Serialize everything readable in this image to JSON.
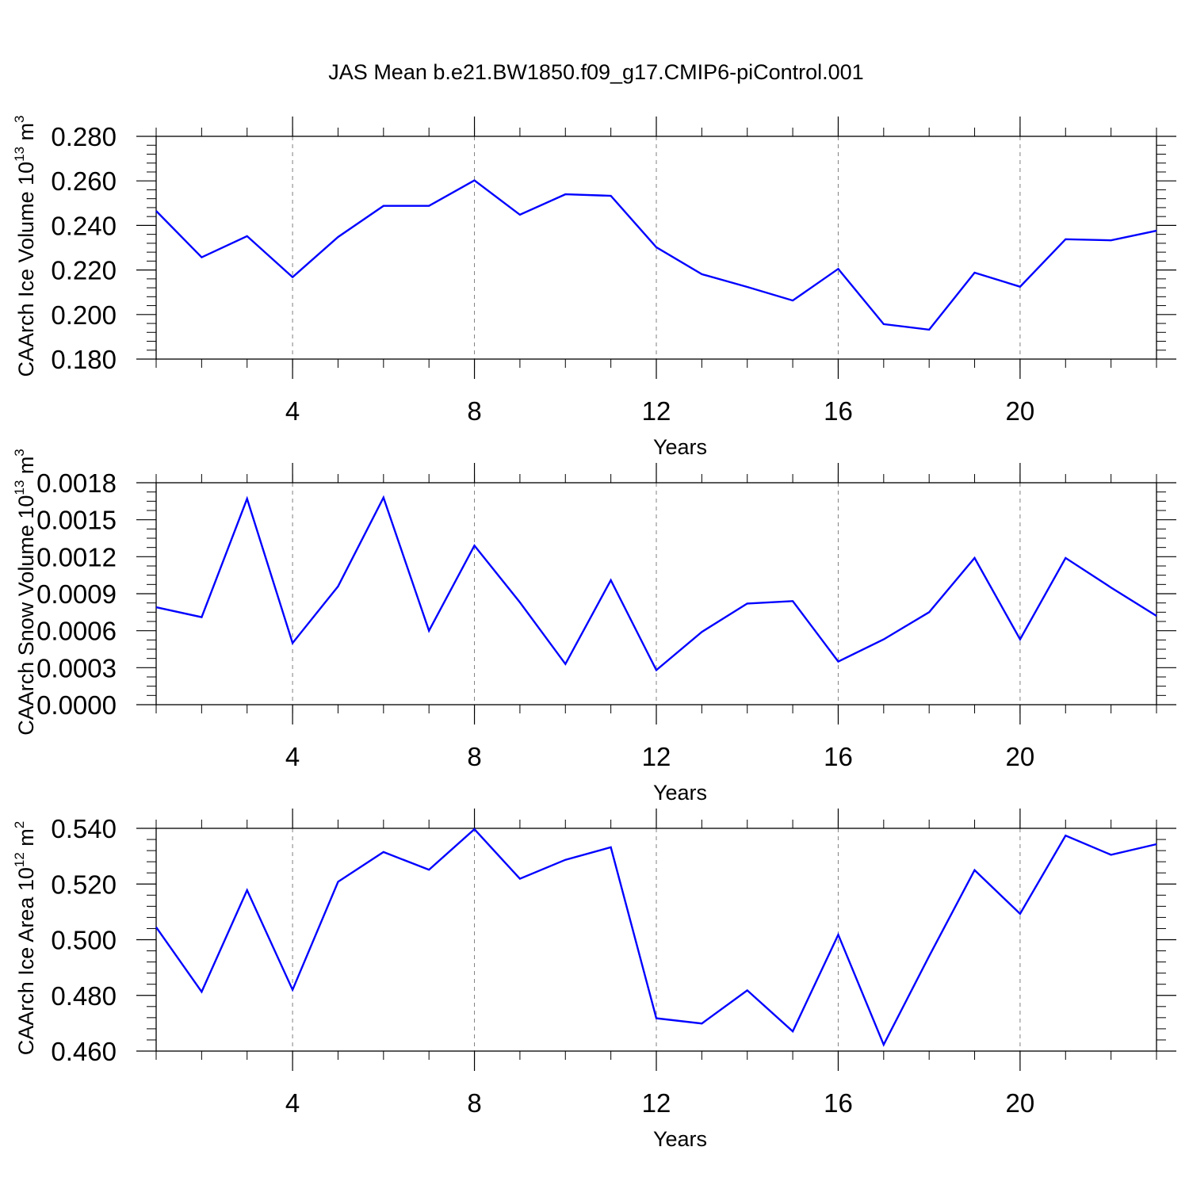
{
  "title": "JAS Mean b.e21.BW1850.f09_g17.CMIP6-piControl.001",
  "line_color": "#0000ff",
  "grid_color": "#808080",
  "chart_data": [
    {
      "type": "line",
      "title": "JAS Mean b.e21.BW1850.f09_g17.CMIP6-piControl.001",
      "xlabel": "Years",
      "ylabel": {
        "text": "CAArch Ice Volume 10",
        "exp": "13",
        "unit": "m",
        "unit_exp": "3"
      },
      "xlim": [
        1,
        23
      ],
      "ylim": [
        0.18,
        0.28
      ],
      "xticks": [
        4,
        8,
        12,
        16,
        20
      ],
      "xtick_labels": [
        "4",
        "8",
        "12",
        "16",
        "20"
      ],
      "yticks": [
        0.18,
        0.2,
        0.22,
        0.24,
        0.26,
        0.28
      ],
      "ytick_labels": [
        "0.180",
        "0.200",
        "0.220",
        "0.240",
        "0.260",
        "0.280"
      ],
      "grid": "vertical dashed at major x ticks",
      "x": [
        1,
        2,
        3,
        4,
        5,
        6,
        7,
        8,
        9,
        10,
        11,
        12,
        13,
        14,
        15,
        16,
        17,
        18,
        19,
        20,
        21,
        22,
        23
      ],
      "values": [
        0.2465,
        0.2257,
        0.2352,
        0.2168,
        0.2348,
        0.2488,
        0.2488,
        0.2602,
        0.2448,
        0.254,
        0.2533,
        0.2302,
        0.2181,
        0.2124,
        0.2063,
        0.2205,
        0.1957,
        0.1932,
        0.2188,
        0.2125,
        0.2338,
        0.2333,
        0.2376
      ]
    },
    {
      "type": "line",
      "xlabel": "Years",
      "ylabel": {
        "text": "CAArch Snow Volume 10",
        "exp": "13",
        "unit": "m",
        "unit_exp": "3"
      },
      "xlim": [
        1,
        23
      ],
      "ylim": [
        0,
        0.0018
      ],
      "xticks": [
        4,
        8,
        12,
        16,
        20
      ],
      "xtick_labels": [
        "4",
        "8",
        "12",
        "16",
        "20"
      ],
      "yticks": [
        0,
        0.0003,
        0.0006,
        0.0009,
        0.0012,
        0.0015,
        0.0018
      ],
      "ytick_labels": [
        "0.0000",
        "0.0003",
        "0.0006",
        "0.0009",
        "0.0012",
        "0.0015",
        "0.0018"
      ],
      "grid": "vertical dashed at major x ticks",
      "x": [
        1,
        2,
        3,
        4,
        5,
        6,
        7,
        8,
        9,
        10,
        11,
        12,
        13,
        14,
        15,
        16,
        17,
        18,
        19,
        20,
        21,
        22,
        23
      ],
      "values": [
        0.00079,
        0.00071,
        0.00167,
        0.0005,
        0.00096,
        0.00168,
        0.0006,
        0.00129,
        0.00083,
        0.00033,
        0.00101,
        0.00028,
        0.00059,
        0.00082,
        0.00084,
        0.00035,
        0.00053,
        0.00075,
        0.00119,
        0.00053,
        0.00119,
        0.00095,
        0.00072
      ]
    },
    {
      "type": "line",
      "xlabel": "Years",
      "ylabel": {
        "text": "CAArch Ice Area 10",
        "exp": "12",
        "unit": "m",
        "unit_exp": "2"
      },
      "xlim": [
        1,
        23
      ],
      "ylim": [
        0.46,
        0.54
      ],
      "xticks": [
        4,
        8,
        12,
        16,
        20
      ],
      "xtick_labels": [
        "4",
        "8",
        "12",
        "16",
        "20"
      ],
      "yticks": [
        0.46,
        0.48,
        0.5,
        0.52,
        0.54
      ],
      "ytick_labels": [
        "0.460",
        "0.480",
        "0.500",
        "0.520",
        "0.540"
      ],
      "grid": "vertical dashed at major x ticks",
      "x": [
        1,
        2,
        3,
        4,
        5,
        6,
        7,
        8,
        9,
        10,
        11,
        12,
        13,
        14,
        15,
        16,
        17,
        18,
        19,
        20,
        21,
        22,
        23
      ],
      "values": [
        0.5045,
        0.4813,
        0.5178,
        0.482,
        0.5208,
        0.5315,
        0.5251,
        0.5397,
        0.5219,
        0.5287,
        0.5332,
        0.4718,
        0.4699,
        0.4818,
        0.4671,
        0.5018,
        0.4623,
        0.4941,
        0.525,
        0.5093,
        0.5374,
        0.5305,
        0.5343
      ]
    }
  ]
}
